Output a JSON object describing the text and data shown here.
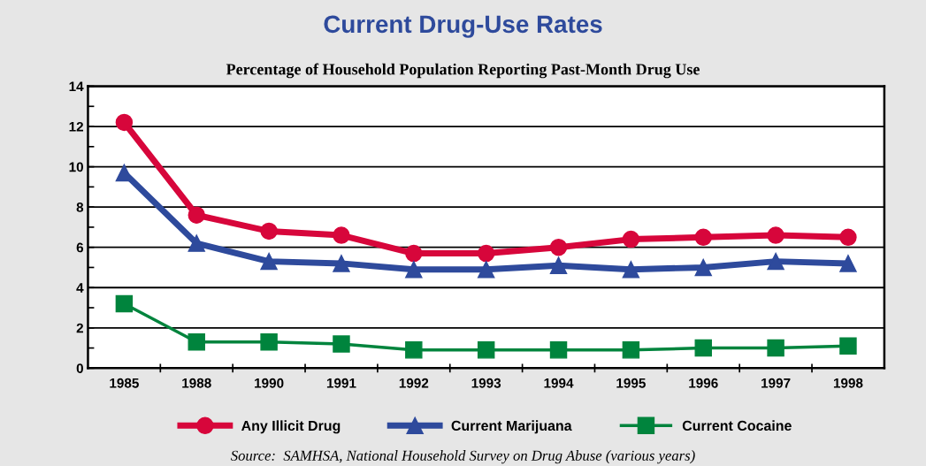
{
  "chart_data": {
    "type": "line",
    "title": "Current Drug-Use Rates",
    "subtitle": "Percentage of Household Population Reporting Past-Month Drug Use",
    "categories": [
      "1985",
      "1988",
      "1990",
      "1991",
      "1992",
      "1993",
      "1994",
      "1995",
      "1996",
      "1997",
      "1998"
    ],
    "series": [
      {
        "name": "Any Illicit Drug",
        "color": "#d7063b",
        "marker": "circle",
        "values": [
          12.2,
          7.6,
          6.8,
          6.6,
          5.7,
          5.7,
          6.0,
          6.4,
          6.5,
          6.6,
          6.5
        ]
      },
      {
        "name": "Current Marijuana",
        "color": "#2e4a9c",
        "marker": "triangle",
        "values": [
          9.7,
          6.2,
          5.3,
          5.2,
          4.9,
          4.9,
          5.1,
          4.9,
          5.0,
          5.3,
          5.2
        ]
      },
      {
        "name": "Current Cocaine",
        "color": "#00843d",
        "marker": "square",
        "values": [
          3.2,
          1.3,
          1.3,
          1.2,
          0.9,
          0.9,
          0.9,
          0.9,
          1.0,
          1.0,
          1.1
        ]
      }
    ],
    "ylim": [
      0,
      14
    ],
    "yticks": [
      0,
      {
        "value": 1,
        "label": null
      },
      2,
      {
        "value": 3,
        "label": null
      },
      4,
      {
        "value": 5,
        "label": null
      },
      6,
      {
        "value": 7,
        "label": null
      },
      8,
      {
        "value": 9,
        "label": null
      },
      10,
      {
        "value": 11,
        "label": null
      },
      12,
      {
        "value": 13,
        "label": null
      },
      14
    ],
    "grid": "y",
    "legend": "bottom",
    "line_style": "solid",
    "annotations": [
      "Source:  SAMHSA, National Household Survey on Drug Abuse (various years)"
    ]
  }
}
